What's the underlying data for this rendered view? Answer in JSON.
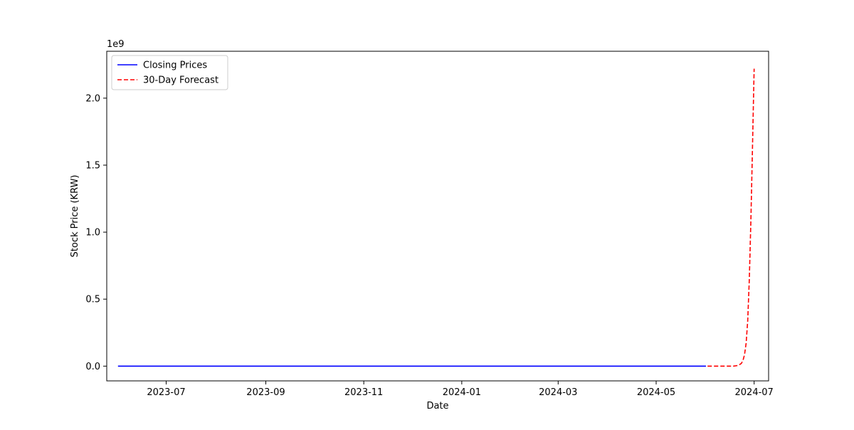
{
  "chart_data": {
    "type": "line",
    "xlabel": "Date",
    "ylabel": "Stock Price (KRW)",
    "y_offset_label": "1e9",
    "y_scale_factor": 1000000000,
    "xlim": [
      "2023-05-25",
      "2024-07-10"
    ],
    "ylim": [
      -110000000,
      2350000000
    ],
    "x_ticks": [
      {
        "value": "2023-07-01",
        "label": "2023-07"
      },
      {
        "value": "2023-09-01",
        "label": "2023-09"
      },
      {
        "value": "2023-11-01",
        "label": "2023-11"
      },
      {
        "value": "2024-01-01",
        "label": "2024-01"
      },
      {
        "value": "2024-03-01",
        "label": "2024-03"
      },
      {
        "value": "2024-05-01",
        "label": "2024-05"
      },
      {
        "value": "2024-07-01",
        "label": "2024-07"
      }
    ],
    "y_ticks": [
      {
        "value": 0,
        "label": "0.0"
      },
      {
        "value": 500000000,
        "label": "0.5"
      },
      {
        "value": 1000000000,
        "label": "1.0"
      },
      {
        "value": 1500000000,
        "label": "1.5"
      },
      {
        "value": 2000000000,
        "label": "2.0"
      }
    ],
    "grid": false,
    "legend_position": "top-left",
    "series": [
      {
        "name": "Closing Prices",
        "color": "#0000ff",
        "style": "solid",
        "points": [
          {
            "x": "2023-06-01",
            "y": 0
          },
          {
            "x": "2024-06-01",
            "y": 0
          }
        ]
      },
      {
        "name": "30-Day Forecast",
        "color": "#ff0000",
        "style": "dashed",
        "points": [
          {
            "x": "2024-06-02",
            "y": 0
          },
          {
            "x": "2024-06-10",
            "y": 0
          },
          {
            "x": "2024-06-18",
            "y": 0
          },
          {
            "x": "2024-06-21",
            "y": 5000000
          },
          {
            "x": "2024-06-23",
            "y": 20000000
          },
          {
            "x": "2024-06-24",
            "y": 40000000
          },
          {
            "x": "2024-06-25",
            "y": 85000000
          },
          {
            "x": "2024-06-26",
            "y": 170000000
          },
          {
            "x": "2024-06-27",
            "y": 340000000
          },
          {
            "x": "2024-06-28",
            "y": 650000000
          },
          {
            "x": "2024-06-29",
            "y": 1100000000
          },
          {
            "x": "2024-06-30",
            "y": 1650000000
          },
          {
            "x": "2024-07-01",
            "y": 2220000000
          }
        ]
      }
    ]
  }
}
